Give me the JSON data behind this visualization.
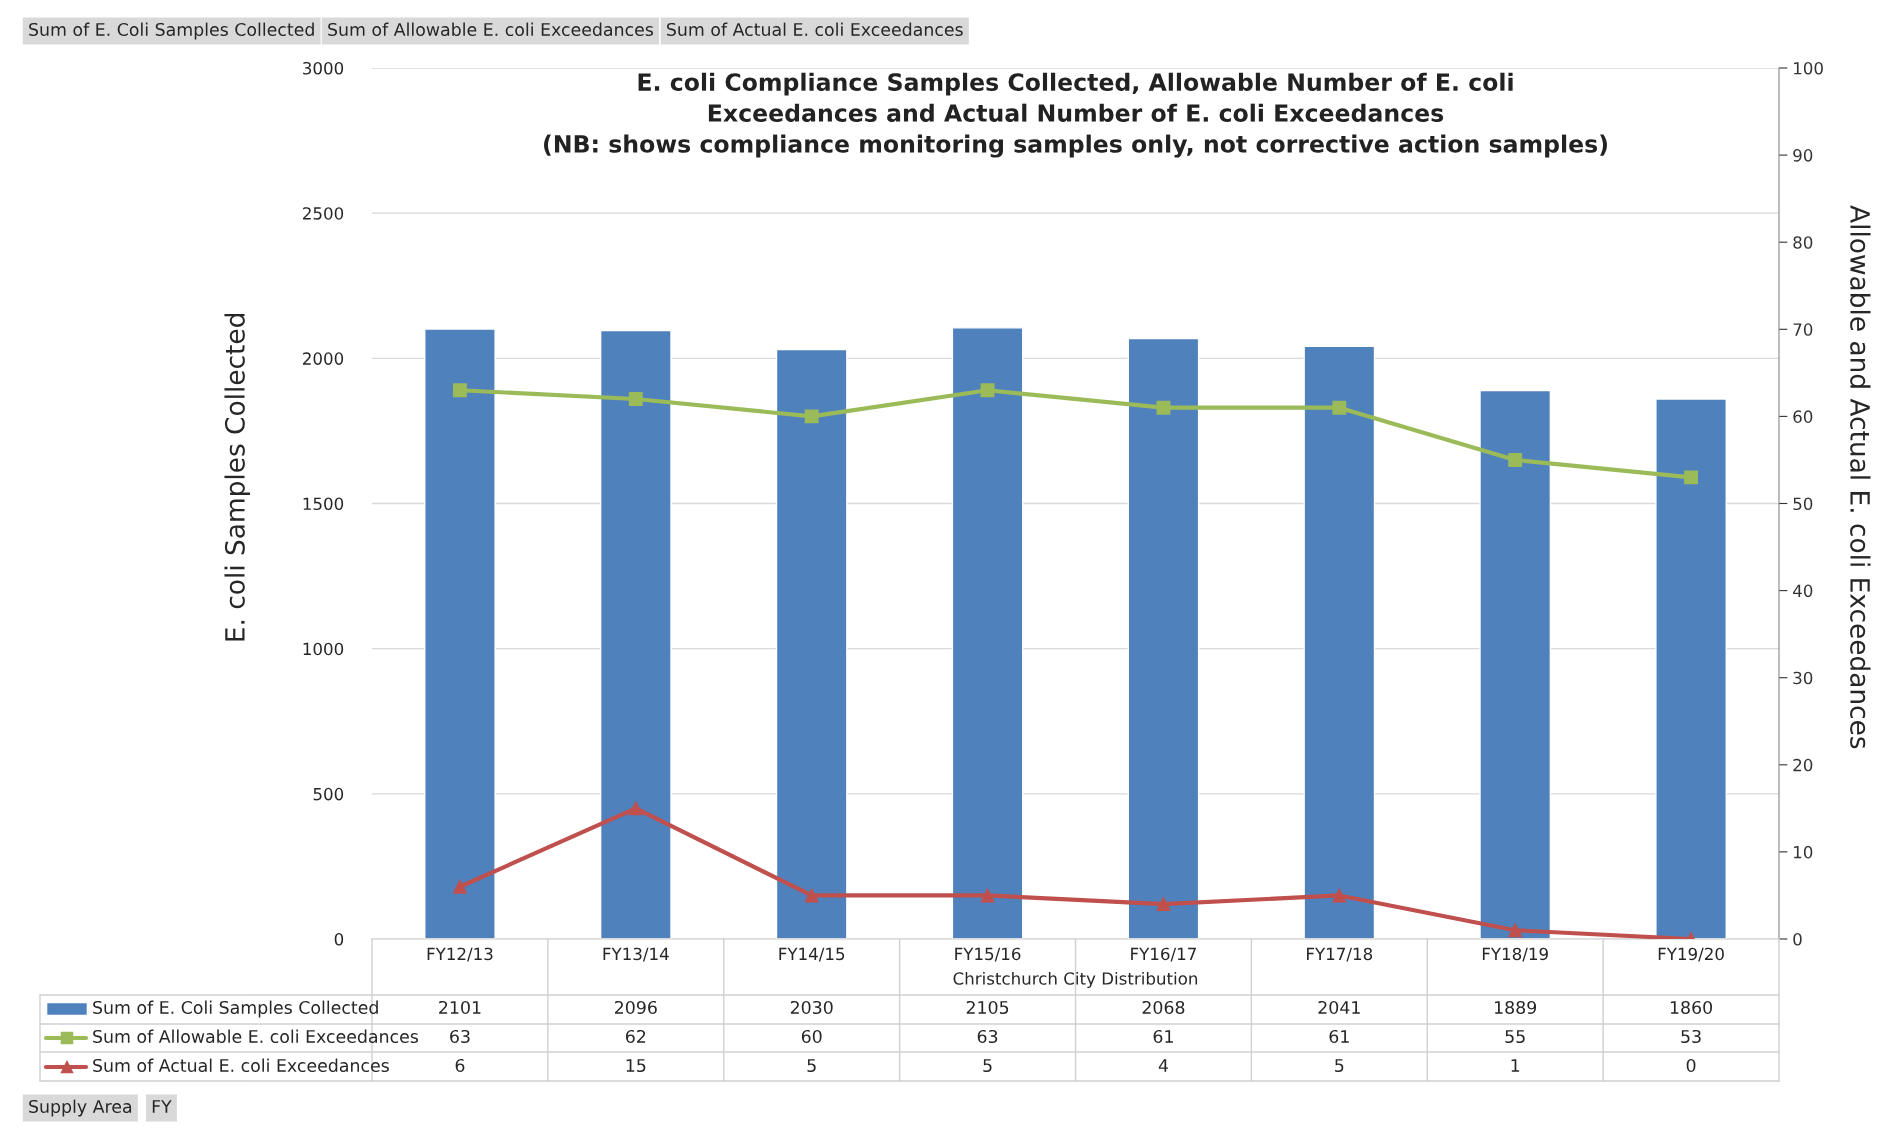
{
  "chart_data": {
    "type": "bar",
    "title": "E. coli Compliance Samples Collected, Allowable Number of E. coli\nExceedances and Actual Number of E. coli Exceedances\n(NB: shows compliance monitoring samples only, not corrective action samples)",
    "xlabel": "Christchurch City Distribution",
    "ylabel": "E. coli Samples Collected",
    "y2label": "Allowable and Actual E. coli Exceedances",
    "categories": [
      "FY12/13",
      "FY13/14",
      "FY14/15",
      "FY15/16",
      "FY16/17",
      "FY17/18",
      "FY18/19",
      "FY19/20"
    ],
    "series": [
      {
        "name": "Sum of E. Coli Samples Collected",
        "color": "#4f81bd",
        "values": [
          2101,
          2096,
          2030,
          2105,
          2068,
          2041,
          1889,
          1860
        ]
      },
      {
        "name": "Sum of Allowable E. coli Exceedances",
        "type": "line",
        "axis": "y2",
        "marker": "square",
        "color": "#9bbb59",
        "values": [
          63,
          62,
          60,
          63,
          61,
          61,
          55,
          53
        ]
      },
      {
        "name": "Sum of Actual E. coli Exceedances",
        "type": "line",
        "axis": "y2",
        "marker": "triangle",
        "color": "#c0504d",
        "values": [
          6,
          15,
          5,
          5,
          4,
          5,
          1,
          0
        ]
      }
    ],
    "ylim": [
      0,
      3000
    ],
    "yticks": [
      0,
      500,
      1000,
      1500,
      2000,
      2500,
      3000
    ],
    "y2lim": [
      0,
      100
    ],
    "y2ticks": [
      0,
      10,
      20,
      30,
      40,
      50,
      60,
      70,
      80,
      90,
      100
    ],
    "grid": "y",
    "legend": "bottom",
    "data_labels": true,
    "annotations": [
      "Sum of E. Coli Samples Collected",
      "Sum of Allowable E. coli Exceedances",
      "Sum of Actual E. coli Exceedances",
      "Supply Area",
      "FY"
    ]
  }
}
